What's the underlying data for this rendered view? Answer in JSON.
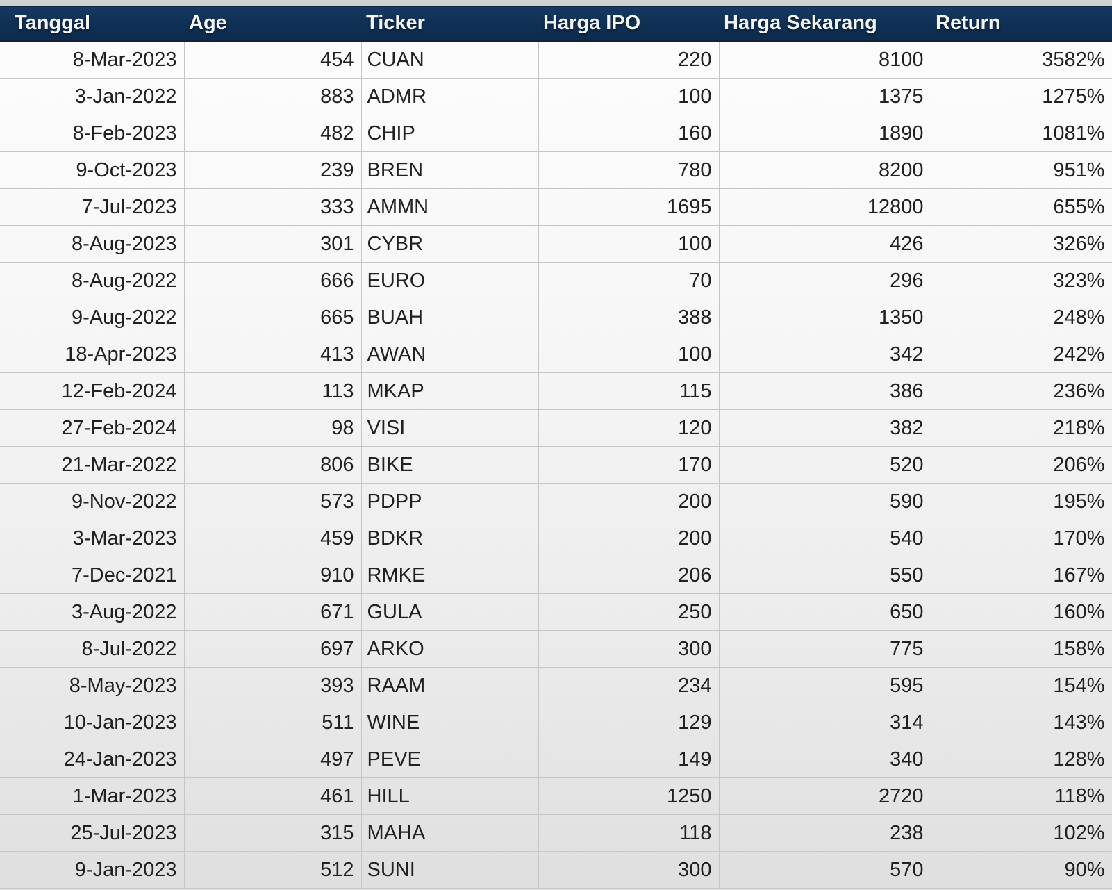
{
  "table": {
    "columns": [
      {
        "key": "tanggal",
        "label": "Tanggal",
        "align": "right"
      },
      {
        "key": "age",
        "label": "Age",
        "align": "right"
      },
      {
        "key": "ticker",
        "label": "Ticker",
        "align": "left"
      },
      {
        "key": "harga_ipo",
        "label": "Harga IPO",
        "align": "right"
      },
      {
        "key": "harga_sekarang",
        "label": "Harga Sekarang",
        "align": "right"
      },
      {
        "key": "return",
        "label": "Return",
        "align": "right"
      }
    ],
    "rows": [
      {
        "tanggal": "8-Mar-2023",
        "age": "454",
        "ticker": "CUAN",
        "harga_ipo": "220",
        "harga_sekarang": "8100",
        "return": "3582%"
      },
      {
        "tanggal": "3-Jan-2022",
        "age": "883",
        "ticker": "ADMR",
        "harga_ipo": "100",
        "harga_sekarang": "1375",
        "return": "1275%"
      },
      {
        "tanggal": "8-Feb-2023",
        "age": "482",
        "ticker": "CHIP",
        "harga_ipo": "160",
        "harga_sekarang": "1890",
        "return": "1081%"
      },
      {
        "tanggal": "9-Oct-2023",
        "age": "239",
        "ticker": "BREN",
        "harga_ipo": "780",
        "harga_sekarang": "8200",
        "return": "951%"
      },
      {
        "tanggal": "7-Jul-2023",
        "age": "333",
        "ticker": "AMMN",
        "harga_ipo": "1695",
        "harga_sekarang": "12800",
        "return": "655%"
      },
      {
        "tanggal": "8-Aug-2023",
        "age": "301",
        "ticker": "CYBR",
        "harga_ipo": "100",
        "harga_sekarang": "426",
        "return": "326%"
      },
      {
        "tanggal": "8-Aug-2022",
        "age": "666",
        "ticker": "EURO",
        "harga_ipo": "70",
        "harga_sekarang": "296",
        "return": "323%"
      },
      {
        "tanggal": "9-Aug-2022",
        "age": "665",
        "ticker": "BUAH",
        "harga_ipo": "388",
        "harga_sekarang": "1350",
        "return": "248%"
      },
      {
        "tanggal": "18-Apr-2023",
        "age": "413",
        "ticker": "AWAN",
        "harga_ipo": "100",
        "harga_sekarang": "342",
        "return": "242%"
      },
      {
        "tanggal": "12-Feb-2024",
        "age": "113",
        "ticker": "MKAP",
        "harga_ipo": "115",
        "harga_sekarang": "386",
        "return": "236%"
      },
      {
        "tanggal": "27-Feb-2024",
        "age": "98",
        "ticker": "VISI",
        "harga_ipo": "120",
        "harga_sekarang": "382",
        "return": "218%"
      },
      {
        "tanggal": "21-Mar-2022",
        "age": "806",
        "ticker": "BIKE",
        "harga_ipo": "170",
        "harga_sekarang": "520",
        "return": "206%"
      },
      {
        "tanggal": "9-Nov-2022",
        "age": "573",
        "ticker": "PDPP",
        "harga_ipo": "200",
        "harga_sekarang": "590",
        "return": "195%"
      },
      {
        "tanggal": "3-Mar-2023",
        "age": "459",
        "ticker": "BDKR",
        "harga_ipo": "200",
        "harga_sekarang": "540",
        "return": "170%"
      },
      {
        "tanggal": "7-Dec-2021",
        "age": "910",
        "ticker": "RMKE",
        "harga_ipo": "206",
        "harga_sekarang": "550",
        "return": "167%"
      },
      {
        "tanggal": "3-Aug-2022",
        "age": "671",
        "ticker": "GULA",
        "harga_ipo": "250",
        "harga_sekarang": "650",
        "return": "160%"
      },
      {
        "tanggal": "8-Jul-2022",
        "age": "697",
        "ticker": "ARKO",
        "harga_ipo": "300",
        "harga_sekarang": "775",
        "return": "158%"
      },
      {
        "tanggal": "8-May-2023",
        "age": "393",
        "ticker": "RAAM",
        "harga_ipo": "234",
        "harga_sekarang": "595",
        "return": "154%"
      },
      {
        "tanggal": "10-Jan-2023",
        "age": "511",
        "ticker": "WINE",
        "harga_ipo": "129",
        "harga_sekarang": "314",
        "return": "143%"
      },
      {
        "tanggal": "24-Jan-2023",
        "age": "497",
        "ticker": "PEVE",
        "harga_ipo": "149",
        "harga_sekarang": "340",
        "return": "128%"
      },
      {
        "tanggal": "1-Mar-2023",
        "age": "461",
        "ticker": "HILL",
        "harga_ipo": "1250",
        "harga_sekarang": "2720",
        "return": "118%"
      },
      {
        "tanggal": "25-Jul-2023",
        "age": "315",
        "ticker": "MAHA",
        "harga_ipo": "118",
        "harga_sekarang": "238",
        "return": "102%"
      },
      {
        "tanggal": "9-Jan-2023",
        "age": "512",
        "ticker": "SUNI",
        "harga_ipo": "300",
        "harga_sekarang": "570",
        "return": "90%"
      }
    ]
  },
  "colors": {
    "header_bg": "#0E3055",
    "header_text": "#F4F4F4",
    "header_underline": "#16203A",
    "grid": "#C6C6C6",
    "text": "#212121",
    "top_strip": "#D0D0D0"
  }
}
